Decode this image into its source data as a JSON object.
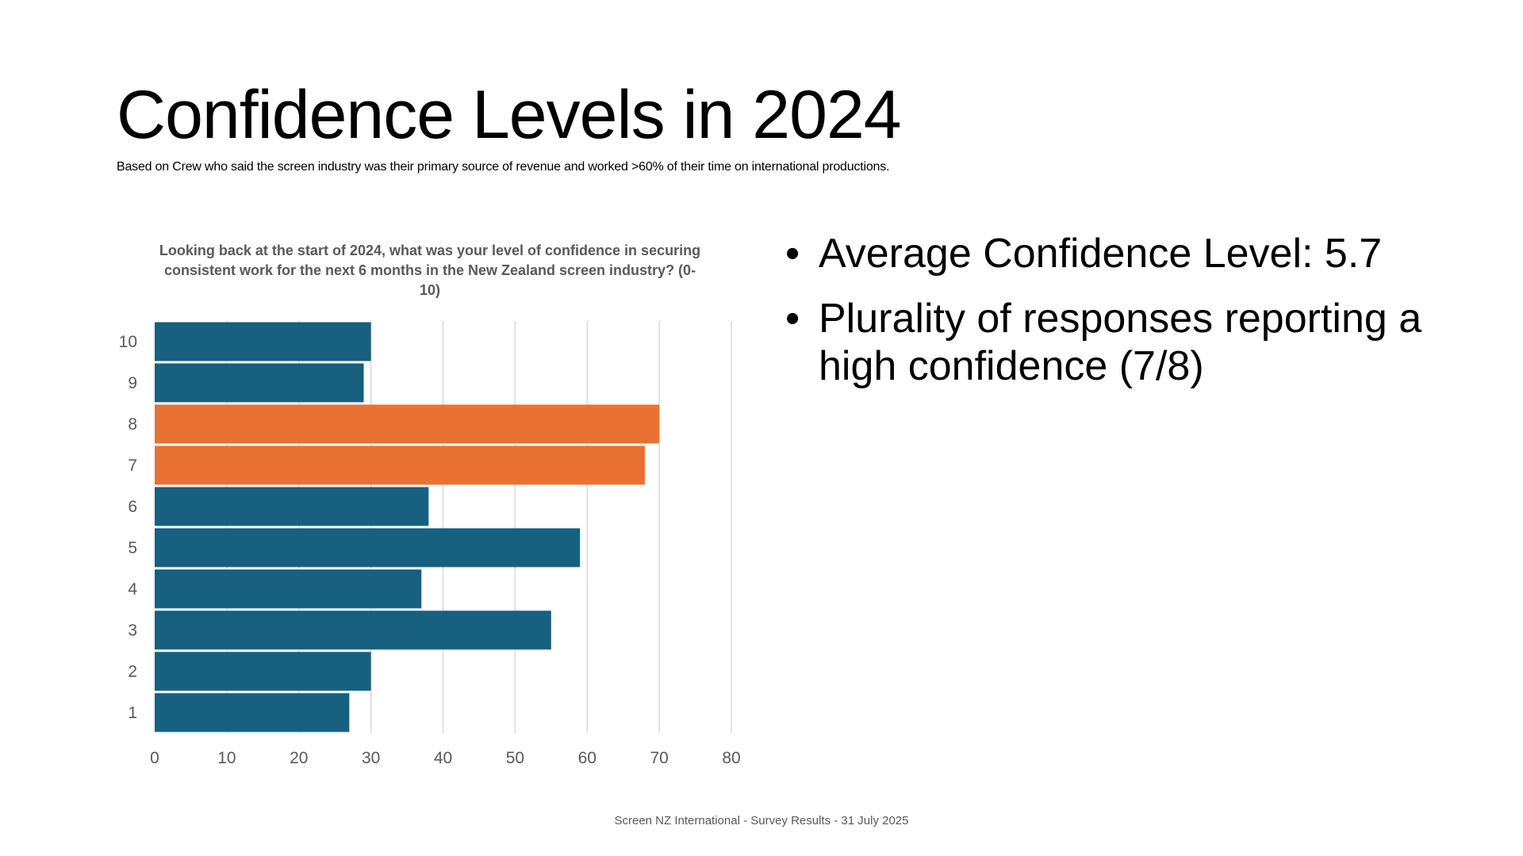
{
  "slide": {
    "title": "Confidence Levels in 2024",
    "subtitle": "Based on Crew who said the screen industry was their primary source of revenue and worked >60% of their time on international productions.",
    "footer": "Screen NZ International - Survey Results - 31 July 2025"
  },
  "bullets": [
    {
      "marker": "•",
      "text": "Average Confidence Level: 5.7"
    },
    {
      "marker": "•",
      "text": "Plurality of responses reporting a high confidence (7/8)"
    }
  ],
  "colors": {
    "bar": "#17607f",
    "highlight": "#e97132",
    "grid": "#d9d9d9",
    "axis_text": "#595959"
  },
  "chart_data": {
    "type": "bar",
    "orientation": "horizontal",
    "title": "Looking back at the start of 2024, what was your level of confidence in securing consistent work for the next 6 months in the New Zealand screen industry? (0-10)",
    "categories": [
      "10",
      "9",
      "8",
      "7",
      "6",
      "5",
      "4",
      "3",
      "2",
      "1"
    ],
    "values": [
      30,
      29,
      70,
      68,
      38,
      59,
      37,
      55,
      30,
      27
    ],
    "highlighted": [
      "8",
      "7"
    ],
    "xlim": [
      0,
      80
    ],
    "xticks": [
      "0",
      "10",
      "20",
      "30",
      "40",
      "50",
      "60",
      "70",
      "80"
    ],
    "grid": "vertical",
    "legend": "none"
  }
}
